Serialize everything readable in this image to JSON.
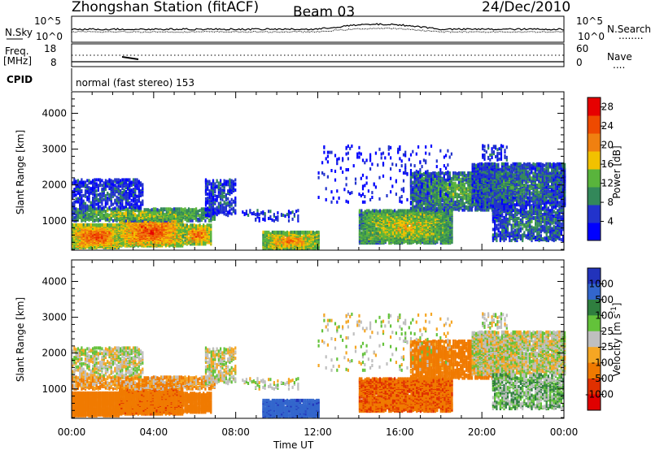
{
  "header": {
    "station": "Zhongshan Station (fitACF)",
    "beam": "Beam 03",
    "date": "24/Dec/2010"
  },
  "noise_panel": {
    "left_label": "N.Sky",
    "left_ticks": [
      "10^5",
      "10^0"
    ],
    "right_ticks": [
      "10^5",
      "10^0"
    ],
    "right_label": "N.Search",
    "right_marker": "........"
  },
  "freq_panel": {
    "left_label_line1": "Freq.",
    "left_label_line2": "[MHz]",
    "left_ticks": [
      "18",
      "8"
    ],
    "right_ticks": [
      "60",
      "0"
    ],
    "right_label": "Nave",
    "right_marker": "...."
  },
  "cpid": {
    "label": "CPID",
    "text": "normal (fast stereo) 153"
  },
  "colors": {
    "power": [
      "#0000ff",
      "#2233cc",
      "#33885a",
      "#59b43c",
      "#f2c100",
      "#f08010",
      "#ee4a00",
      "#e60000"
    ],
    "velocity": [
      "#2233bb",
      "#3366cc",
      "#2f7f3f",
      "#63c23a",
      "#bfbfbf",
      "#f5a623",
      "#f07a00",
      "#e03000",
      "#e00000"
    ],
    "ground": "#bfbfbf"
  },
  "chart_data": [
    {
      "type": "heatmap",
      "id": "power",
      "ylabel": "Slant Range [km]",
      "ylim": [
        180,
        4600
      ],
      "y_ticks": [
        1000,
        2000,
        3000,
        4000
      ],
      "x_ticks": [
        "00:00",
        "04:00",
        "08:00",
        "12:00",
        "16:00",
        "20:00",
        "00:00"
      ],
      "xlabel": "",
      "colorbar": {
        "label": "Power [dB]",
        "ticks": [
          4,
          8,
          12,
          16,
          20,
          24,
          28
        ],
        "range": [
          0,
          30
        ]
      }
    },
    {
      "type": "heatmap",
      "id": "velocity",
      "ylabel": "Slant Range [km]",
      "ylim": [
        180,
        4600
      ],
      "y_ticks": [
        1000,
        2000,
        3000,
        4000
      ],
      "x_ticks": [
        "00:00",
        "04:00",
        "08:00",
        "12:00",
        "16:00",
        "20:00",
        "00:00"
      ],
      "xlabel": "Time UT",
      "colorbar": {
        "label": "Velocity [m s",
        "label_sup": "-1",
        "label_end": "]",
        "ticks": [
          "1000",
          "500",
          "100",
          "25",
          "-25",
          "-100",
          "-500",
          "-1000"
        ]
      }
    }
  ],
  "blobs": [
    {
      "t0": 0.0,
      "t1": 2.3,
      "r0": 250,
      "r1": 900,
      "p": 26,
      "v": -150,
      "d": 0.85
    },
    {
      "t0": 2.3,
      "t1": 5.4,
      "r0": 300,
      "r1": 1150,
      "p": 26,
      "v": -250,
      "d": 0.88
    },
    {
      "t0": 5.4,
      "t1": 6.8,
      "r0": 350,
      "r1": 900,
      "p": 24,
      "v": -220,
      "d": 0.7
    },
    {
      "t0": 0.0,
      "t1": 7.0,
      "r0": 1000,
      "r1": 1350,
      "p": 16,
      "v": -60,
      "d": 0.5
    },
    {
      "t0": 0.0,
      "t1": 3.5,
      "r0": 1350,
      "r1": 2150,
      "p": 7,
      "v": 0,
      "d": 0.35
    },
    {
      "t0": 6.5,
      "t1": 8.0,
      "r0": 1150,
      "r1": 2150,
      "p": 7,
      "v": 0,
      "d": 0.35
    },
    {
      "t0": 9.3,
      "t1": 12.0,
      "r0": 220,
      "r1": 700,
      "p": 22,
      "v": 700,
      "d": 0.8
    },
    {
      "t0": 8.3,
      "t1": 11.0,
      "r0": 1000,
      "r1": 1300,
      "p": 7,
      "v": 0,
      "d": 0.15
    },
    {
      "t0": 14.0,
      "t1": 18.5,
      "r0": 380,
      "r1": 1300,
      "p": 18,
      "v": -280,
      "d": 0.75
    },
    {
      "t0": 16.5,
      "t1": 21.5,
      "r0": 1300,
      "r1": 2350,
      "p": 13,
      "v": -180,
      "d": 0.55
    },
    {
      "t0": 19.5,
      "t1": 24.0,
      "r0": 1400,
      "r1": 2600,
      "p": 10,
      "v": 0,
      "d": 0.55
    },
    {
      "t0": 20.5,
      "t1": 24.0,
      "r0": 450,
      "r1": 1400,
      "p": 10,
      "v": 40,
      "d": 0.45
    },
    {
      "t0": 20.0,
      "t1": 21.2,
      "r0": 2700,
      "r1": 3100,
      "p": 8,
      "v": 0,
      "d": 0.2
    },
    {
      "t0": 12.0,
      "t1": 18.5,
      "r0": 1500,
      "r1": 3100,
      "p": 4,
      "v": 0,
      "d": 0.04
    }
  ]
}
